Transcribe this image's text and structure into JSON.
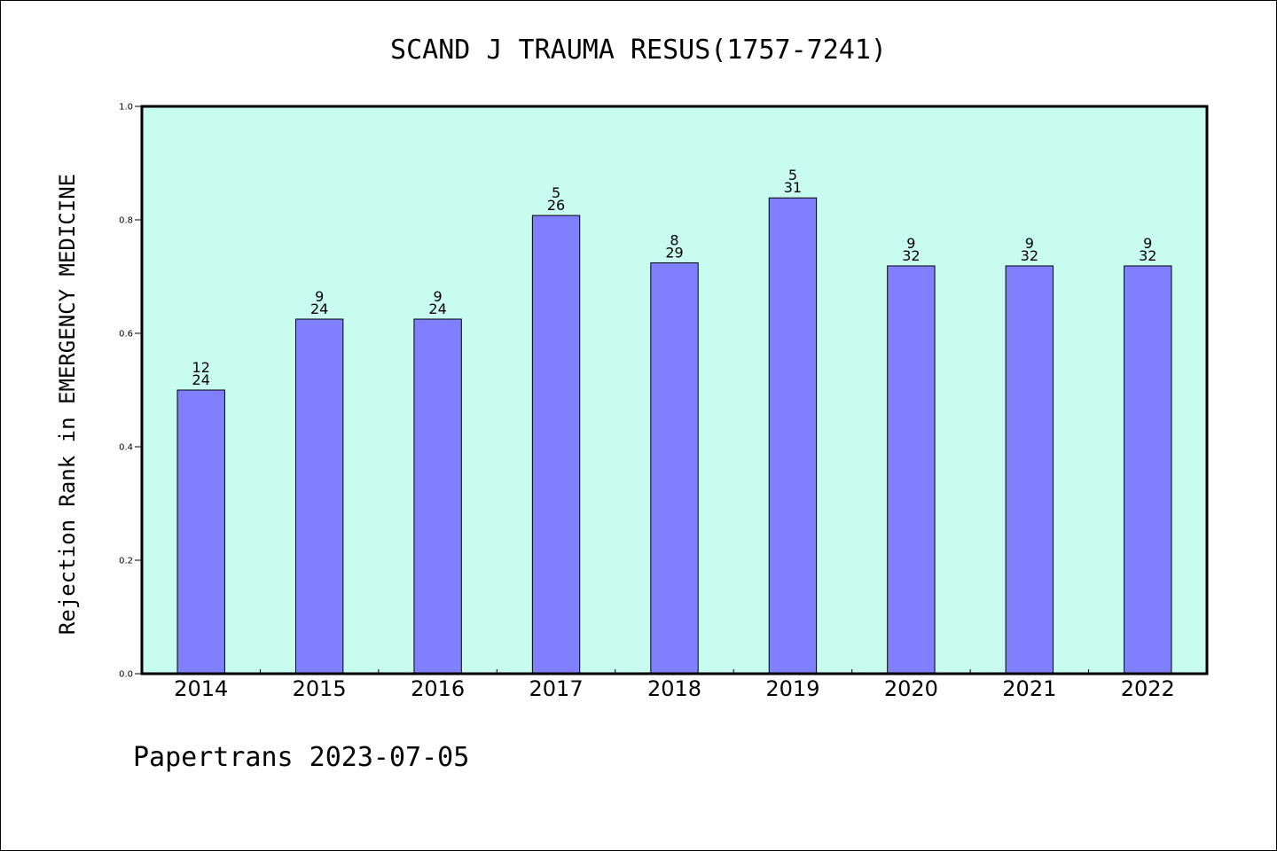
{
  "chart_data": {
    "type": "bar",
    "title": "SCAND J TRAUMA RESUS(1757-7241)",
    "ylabel": "Rejection Rank in EMERGENCY MEDICINE",
    "xlabel": "",
    "ylim": [
      0.0,
      1.0
    ],
    "yticks": [
      "0.0",
      "0.2",
      "0.4",
      "0.6",
      "0.8",
      "1.0"
    ],
    "categories": [
      "2014",
      "2015",
      "2016",
      "2017",
      "2018",
      "2019",
      "2020",
      "2021",
      "2022"
    ],
    "values": [
      0.5,
      0.625,
      0.625,
      0.8077,
      0.7241,
      0.8387,
      0.7188,
      0.7188,
      0.7188
    ],
    "rank": [
      "12",
      "9",
      "9",
      "5",
      "8",
      "5",
      "9",
      "9",
      "9"
    ],
    "total": [
      "24",
      "24",
      "24",
      "26",
      "29",
      "31",
      "32",
      "32",
      "32"
    ],
    "grid": false,
    "legend": "none",
    "colors": {
      "bar": "#8080ff",
      "plot_background": "#c8fcee",
      "axis": "#000000"
    }
  },
  "footer": {
    "text": "Papertrans 2023-07-05"
  }
}
